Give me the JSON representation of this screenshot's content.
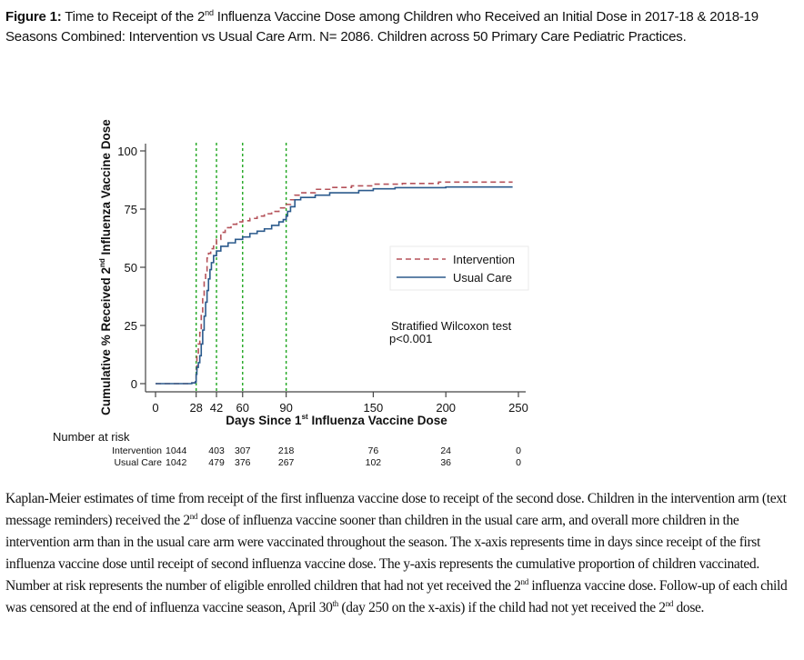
{
  "figure_title": {
    "label": "Figure 1:",
    "text_part1": " Time to Receipt of the 2",
    "sup1": "nd",
    "text_part2": " Influenza Vaccine Dose among Children who Received an Initial Dose in 2017-18 & 2018-19 Seasons Combined: Intervention vs Usual Care Arm. N= 2086. Children across 50 Primary Care Pediatric Practices."
  },
  "chart_data": {
    "type": "line",
    "subtype": "kaplan-meier cumulative incidence (step)",
    "xlabel": "Days Since 1st Influenza Vaccine Dose",
    "xlabel_parts": {
      "pre": "Days Since 1",
      "sup": "st",
      "post": " Influenza Vaccine Dose"
    },
    "ylabel": "Cumulative % Received 2nd Influenza Vaccine Dose",
    "ylabel_parts": {
      "pre": "Cumulative % Received 2",
      "sup": "nd",
      "post": " Influenza Vaccine Dose"
    },
    "xlim": [
      0,
      250
    ],
    "ylim": [
      0,
      100
    ],
    "x_ticks": [
      0,
      28,
      42,
      60,
      90,
      150,
      200,
      250
    ],
    "y_ticks": [
      0,
      25,
      50,
      75,
      100
    ],
    "reference_lines_x": [
      28,
      42,
      60,
      90
    ],
    "reference_line_color": "#1fa61f",
    "grid": false,
    "legend": {
      "position": "center-right",
      "entries": [
        "Intervention",
        "Usual Care"
      ]
    },
    "annotation": {
      "line1": "Stratified Wilcoxon test",
      "line2": "p<0.001"
    },
    "series": [
      {
        "name": "Intervention",
        "style": "dashed",
        "color": "#b5525a",
        "points": [
          [
            0,
            0
          ],
          [
            20,
            0
          ],
          [
            25,
            0.3
          ],
          [
            27.5,
            0.8
          ],
          [
            28,
            6
          ],
          [
            28.5,
            12
          ],
          [
            29.5,
            17
          ],
          [
            30.5,
            22
          ],
          [
            31.5,
            30
          ],
          [
            32.5,
            37
          ],
          [
            33.5,
            44
          ],
          [
            34.5,
            48
          ],
          [
            35.5,
            54
          ],
          [
            36.5,
            56
          ],
          [
            38,
            58
          ],
          [
            40,
            60
          ],
          [
            42,
            62
          ],
          [
            45,
            65
          ],
          [
            48,
            67
          ],
          [
            52,
            68.5
          ],
          [
            56,
            69.5
          ],
          [
            60,
            70
          ],
          [
            65,
            71
          ],
          [
            70,
            72
          ],
          [
            75,
            73
          ],
          [
            80,
            74
          ],
          [
            85,
            75.5
          ],
          [
            90,
            77
          ],
          [
            93,
            79
          ],
          [
            96,
            81
          ],
          [
            100,
            82
          ],
          [
            110,
            83.5
          ],
          [
            120,
            84.3
          ],
          [
            135,
            85
          ],
          [
            150,
            85.7
          ],
          [
            170,
            86
          ],
          [
            185,
            86
          ],
          [
            195,
            86.6
          ],
          [
            220,
            86.6
          ],
          [
            246,
            86.6
          ]
        ]
      },
      {
        "name": "Usual Care",
        "style": "solid",
        "color": "#2b5a8c",
        "points": [
          [
            0,
            0
          ],
          [
            20,
            0
          ],
          [
            25,
            0.3
          ],
          [
            27.5,
            0.8
          ],
          [
            28,
            4
          ],
          [
            28.5,
            7
          ],
          [
            29.5,
            9
          ],
          [
            30.5,
            12
          ],
          [
            31.5,
            17
          ],
          [
            32.5,
            23
          ],
          [
            33.5,
            29
          ],
          [
            34.5,
            35
          ],
          [
            35.5,
            40
          ],
          [
            36.5,
            45
          ],
          [
            37.5,
            49
          ],
          [
            38.5,
            52
          ],
          [
            40,
            55
          ],
          [
            42,
            57
          ],
          [
            45,
            59
          ],
          [
            50,
            60.5
          ],
          [
            55,
            62
          ],
          [
            60,
            63
          ],
          [
            65,
            64.5
          ],
          [
            70,
            65.5
          ],
          [
            75,
            66.5
          ],
          [
            80,
            68
          ],
          [
            85,
            69.5
          ],
          [
            88,
            70.5
          ],
          [
            90,
            72
          ],
          [
            91,
            74
          ],
          [
            93,
            76
          ],
          [
            96,
            79
          ],
          [
            100,
            80
          ],
          [
            110,
            81
          ],
          [
            120,
            82
          ],
          [
            140,
            83
          ],
          [
            150,
            83.7
          ],
          [
            165,
            84.2
          ],
          [
            200,
            84.5
          ],
          [
            246,
            84.5
          ]
        ]
      }
    ],
    "number_at_risk": {
      "title": "Number at risk",
      "days": [
        0,
        42,
        60,
        90,
        150,
        200,
        250
      ],
      "rows": [
        {
          "label": "Intervention",
          "values": [
            1044,
            403,
            307,
            218,
            76,
            24,
            0
          ]
        },
        {
          "label": "Usual Care",
          "values": [
            1042,
            479,
            376,
            267,
            102,
            36,
            0
          ]
        }
      ]
    }
  },
  "caption": {
    "s1": "Kaplan-Meier estimates of time from receipt of the first influenza vaccine dose to receipt of the second dose. Children in the intervention arm (text message reminders) received the 2",
    "sup1": "nd",
    "s2": " dose of influenza vaccine sooner than children in the usual care arm, and overall more children in the intervention arm than in the usual care arm were vaccinated throughout the season. The x-axis represents time in days since receipt of the first influenza vaccine dose until receipt of second influenza vaccine dose. The y-axis represents the cumulative proportion of children vaccinated. Number at risk represents the number of eligible enrolled children that had not yet received the 2",
    "sup2": "nd",
    "s3": " influenza vaccine dose. Follow-up of each child was censored at the end of influenza vaccine season, April 30",
    "sup3": "th",
    "s4": " (day 250 on the x-axis) if the child had not yet received the 2",
    "sup4": "nd",
    "s5": " dose."
  }
}
